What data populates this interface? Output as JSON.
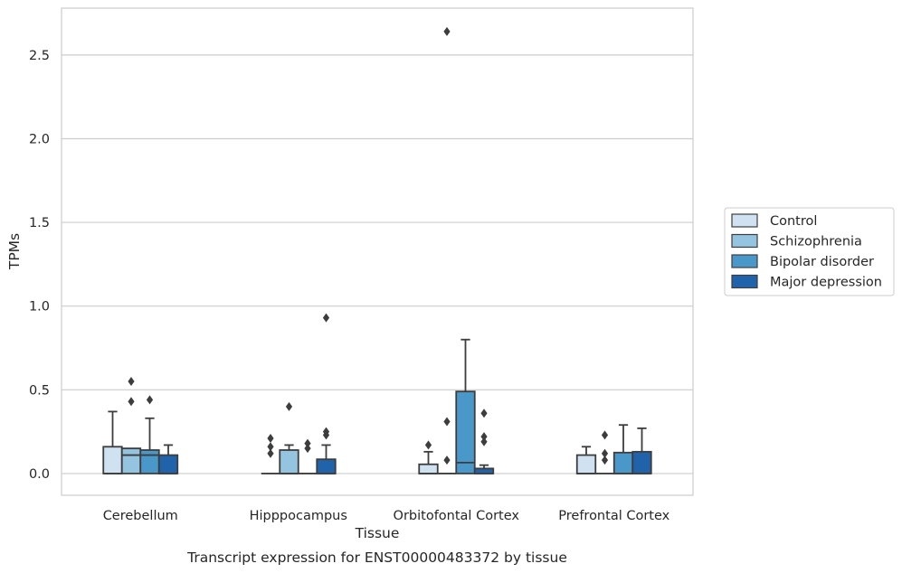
{
  "chart_data": {
    "type": "boxplot",
    "caption": "Transcript expression for ENST00000483372 by tissue",
    "xlabel": "Tissue",
    "ylabel": "TPMs",
    "ylim": [
      -0.13,
      2.78
    ],
    "yticks": [
      0.0,
      0.5,
      1.0,
      1.5,
      2.0,
      2.5
    ],
    "ytick_labels": [
      "0.0",
      "0.5",
      "1.0",
      "1.5",
      "2.0",
      "2.5"
    ],
    "grid": "horizontal",
    "legend_position": "right",
    "categories": [
      "Cerebellum",
      "Hipppocampus",
      "Orbitofontal Cortex",
      "Prefrontal Cortex"
    ],
    "series": [
      {
        "name": "Control",
        "color": "#d0e1f2",
        "boxes": [
          {
            "whislo": 0.0,
            "q1": 0.0,
            "med": 0.0,
            "q3": 0.16,
            "whishi": 0.37,
            "fliers": []
          },
          {
            "whislo": 0.0,
            "q1": 0.0,
            "med": 0.0,
            "q3": 0.0,
            "whishi": 0.0,
            "fliers": [
              0.12,
              0.16,
              0.21
            ]
          },
          {
            "whislo": 0.0,
            "q1": 0.0,
            "med": 0.0,
            "q3": 0.055,
            "whishi": 0.13,
            "fliers": [
              0.17
            ]
          },
          {
            "whislo": 0.0,
            "q1": 0.0,
            "med": 0.0,
            "q3": 0.11,
            "whishi": 0.16,
            "fliers": []
          }
        ]
      },
      {
        "name": "Schizophrenia",
        "color": "#94c4df",
        "boxes": [
          {
            "whislo": 0.0,
            "q1": 0.0,
            "med": 0.11,
            "q3": 0.15,
            "whishi": 0.15,
            "fliers": [
              0.43,
              0.55
            ]
          },
          {
            "whislo": 0.0,
            "q1": 0.0,
            "med": 0.0,
            "q3": 0.14,
            "whishi": 0.17,
            "fliers": [
              0.4
            ]
          },
          {
            "whislo": 0.0,
            "q1": 0.0,
            "med": 0.0,
            "q3": 0.0,
            "whishi": 0.0,
            "fliers": [
              0.08,
              0.31,
              2.64
            ]
          },
          {
            "whislo": 0.0,
            "q1": 0.0,
            "med": 0.0,
            "q3": 0.0,
            "whishi": 0.0,
            "fliers": [
              0.08,
              0.12,
              0.23
            ]
          }
        ]
      },
      {
        "name": "Bipolar disorder",
        "color": "#4a98c9",
        "boxes": [
          {
            "whislo": 0.0,
            "q1": 0.0,
            "med": 0.11,
            "q3": 0.14,
            "whishi": 0.33,
            "fliers": [
              0.44
            ]
          },
          {
            "whislo": 0.0,
            "q1": 0.0,
            "med": 0.0,
            "q3": 0.0,
            "whishi": 0.0,
            "fliers": [
              0.15,
              0.18
            ]
          },
          {
            "whislo": 0.0,
            "q1": 0.0,
            "med": 0.065,
            "q3": 0.49,
            "whishi": 0.8,
            "fliers": []
          },
          {
            "whislo": 0.0,
            "q1": 0.0,
            "med": 0.0,
            "q3": 0.125,
            "whishi": 0.29,
            "fliers": []
          }
        ]
      },
      {
        "name": "Major depression",
        "color": "#2163aa",
        "boxes": [
          {
            "whislo": 0.0,
            "q1": 0.0,
            "med": 0.0,
            "q3": 0.11,
            "whishi": 0.17,
            "fliers": []
          },
          {
            "whislo": 0.0,
            "q1": 0.0,
            "med": 0.0,
            "q3": 0.085,
            "whishi": 0.17,
            "fliers": [
              0.23,
              0.25,
              0.93
            ]
          },
          {
            "whislo": 0.0,
            "q1": 0.0,
            "med": 0.0,
            "q3": 0.03,
            "whishi": 0.05,
            "fliers": [
              0.19,
              0.22,
              0.36
            ]
          },
          {
            "whislo": 0.0,
            "q1": 0.0,
            "med": 0.0,
            "q3": 0.13,
            "whishi": 0.27,
            "fliers": []
          }
        ]
      }
    ]
  }
}
